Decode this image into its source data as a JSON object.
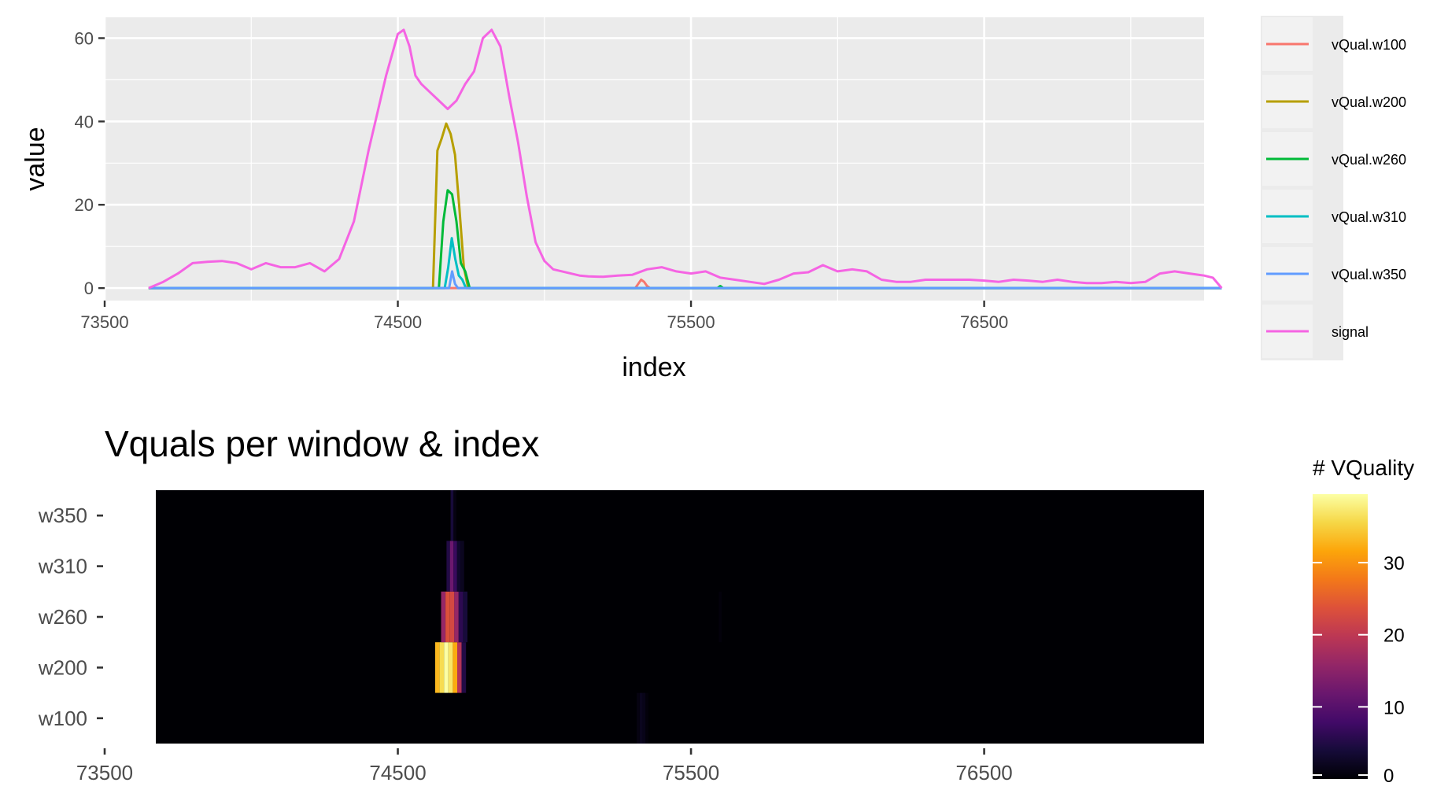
{
  "chart_data": [
    {
      "type": "line",
      "title": "",
      "xlabel": "index",
      "ylabel": "value",
      "xlim": [
        73500,
        77250
      ],
      "ylim": [
        -3,
        65
      ],
      "x_ticks": [
        73500,
        74500,
        75500,
        76500
      ],
      "x_tick_labels": [
        "73500",
        "74500",
        "75500",
        "76500"
      ],
      "y_ticks": [
        0,
        20,
        40,
        60
      ],
      "y_tick_labels": [
        "0",
        "20",
        "40",
        "60"
      ],
      "grid": true,
      "legend_position": "right",
      "series": [
        {
          "name": "vQual.w100",
          "color": "#F8766D",
          "x": [
            73650,
            75310,
            75320,
            75330,
            75340,
            75350,
            75360,
            77310
          ],
          "y": [
            0,
            0,
            1.0,
            2.0,
            1.5,
            0.5,
            0,
            0
          ]
        },
        {
          "name": "vQual.w200",
          "color": "#B79F00",
          "x": [
            73650,
            74620,
            74635,
            74650,
            74665,
            74680,
            74695,
            74710,
            74725,
            74740,
            77310
          ],
          "y": [
            0,
            0,
            33,
            36,
            39.5,
            37,
            32,
            19,
            5,
            0,
            0
          ]
        },
        {
          "name": "vQual.w260",
          "color": "#00BA38",
          "x": [
            73650,
            74640,
            74655,
            74670,
            74685,
            74700,
            74715,
            74730,
            74745,
            75590,
            75600,
            75610,
            77310
          ],
          "y": [
            0,
            0,
            16,
            23.5,
            22.5,
            16,
            6,
            4,
            0,
            0,
            0.5,
            0,
            0
          ]
        },
        {
          "name": "vQual.w310",
          "color": "#00BFC4",
          "x": [
            73650,
            74660,
            74672,
            74684,
            74696,
            74708,
            74720,
            74732,
            77310
          ],
          "y": [
            0,
            0,
            5,
            12,
            7,
            3,
            2,
            0,
            0
          ]
        },
        {
          "name": "vQual.w350",
          "color": "#619CFF",
          "x": [
            73650,
            74675,
            74685,
            74695,
            74705,
            77310
          ],
          "y": [
            0,
            0,
            4,
            1,
            0,
            0
          ]
        },
        {
          "name": "signal",
          "color": "#F564E3",
          "x": [
            73650,
            73700,
            73750,
            73800,
            73850,
            73900,
            73950,
            74000,
            74050,
            74100,
            74150,
            74200,
            74250,
            74300,
            74350,
            74400,
            74430,
            74460,
            74480,
            74500,
            74520,
            74540,
            74560,
            74580,
            74610,
            74640,
            74670,
            74700,
            74730,
            74760,
            74790,
            74820,
            74850,
            74880,
            74910,
            74940,
            74970,
            75000,
            75030,
            75060,
            75090,
            75120,
            75150,
            75200,
            75250,
            75300,
            75350,
            75400,
            75450,
            75500,
            75550,
            75600,
            75650,
            75700,
            75750,
            75800,
            75850,
            75900,
            75950,
            76000,
            76050,
            76100,
            76150,
            76200,
            76250,
            76300,
            76350,
            76400,
            76450,
            76500,
            76550,
            76600,
            76650,
            76700,
            76750,
            76800,
            76850,
            76900,
            76950,
            77000,
            77050,
            77100,
            77150,
            77200,
            77250,
            77280,
            77310
          ],
          "y": [
            0,
            1.5,
            3.5,
            6,
            6.3,
            6.5,
            6,
            4.5,
            6,
            5,
            5,
            6,
            4,
            7,
            16,
            33,
            42,
            51,
            56,
            61,
            62,
            58,
            51,
            49,
            47,
            45,
            43,
            45,
            49,
            52,
            60,
            62,
            58,
            46,
            35,
            22,
            11,
            6.5,
            4.5,
            4,
            3.5,
            3,
            2.8,
            2.7,
            3,
            3.2,
            4.5,
            5,
            4,
            3.5,
            4,
            2.5,
            2,
            1.5,
            1,
            2,
            3.5,
            3.8,
            5.5,
            4,
            4.5,
            4,
            2,
            1.5,
            1.5,
            2,
            2,
            2,
            2,
            1.8,
            1.5,
            2,
            1.8,
            1.5,
            2,
            1.5,
            1.2,
            1.2,
            1.5,
            1.2,
            1.5,
            3.5,
            4,
            3.5,
            3,
            2.5,
            0
          ]
        }
      ]
    },
    {
      "type": "heatmap",
      "title": "Vquals per window & index",
      "xlabel": "",
      "ylabel": "",
      "xlim": [
        73500,
        77250
      ],
      "x_ticks": [
        73500,
        74500,
        75500,
        76500
      ],
      "x_tick_labels": [
        "73500",
        "74500",
        "75500",
        "76500"
      ],
      "x_range": [
        73650,
        77310
      ],
      "rows": [
        "w100",
        "w200",
        "w260",
        "w310",
        "w350"
      ],
      "legend_title": "# VQuality",
      "legend_position": "right",
      "color_range": [
        0,
        39.5
      ],
      "colorbar_ticks": [
        0,
        10,
        20,
        30
      ],
      "colorbar_tick_labels": [
        "0",
        "10",
        "20",
        "30"
      ],
      "colormap": "inferno",
      "cells": [
        {
          "row": "w100",
          "x": [
            75310,
            75320,
            75330,
            75340,
            75350,
            75360
          ],
          "values": [
            0,
            1.0,
            2.0,
            1.5,
            0.5,
            0
          ]
        },
        {
          "row": "w200",
          "x": [
            74620,
            74635,
            74650,
            74665,
            74680,
            74695,
            74710,
            74725,
            74740
          ],
          "values": [
            0,
            33,
            36,
            39.5,
            37,
            32,
            19,
            5,
            0
          ]
        },
        {
          "row": "w260",
          "x": [
            74640,
            74655,
            74670,
            74685,
            74700,
            74715,
            74730,
            74745,
            75590,
            75600,
            75610
          ],
          "values": [
            0,
            16,
            23.5,
            22.5,
            16,
            6,
            4,
            0,
            0,
            0.5,
            0
          ]
        },
        {
          "row": "w310",
          "x": [
            74660,
            74672,
            74684,
            74696,
            74708,
            74720,
            74732
          ],
          "values": [
            0,
            5,
            12,
            7,
            3,
            2,
            0
          ]
        },
        {
          "row": "w350",
          "x": [
            74675,
            74685,
            74695,
            74705
          ],
          "values": [
            0,
            4,
            1,
            0
          ]
        }
      ]
    }
  ]
}
